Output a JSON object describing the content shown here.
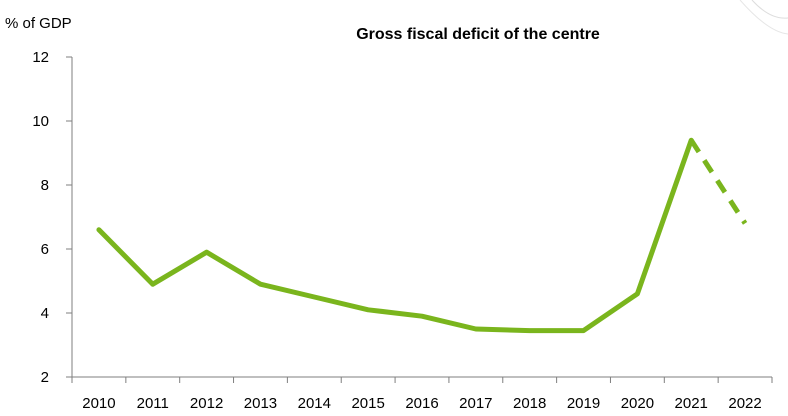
{
  "chart_data": {
    "type": "line",
    "title": "Gross fiscal deficit of the centre",
    "ylabel": "% of GDP",
    "xlabel": "",
    "categories": [
      "2010",
      "2011",
      "2012",
      "2013",
      "2014",
      "2015",
      "2016",
      "2017",
      "2018",
      "2019",
      "2020",
      "2021",
      "2022"
    ],
    "y_ticks": [
      "2",
      "4",
      "6",
      "8",
      "10",
      "12"
    ],
    "ylim": [
      2,
      12
    ],
    "grid": false,
    "legend": "none",
    "series": [
      {
        "values": [
          6.6,
          4.9,
          5.9,
          4.9,
          4.5,
          4.1,
          3.9,
          3.5,
          3.45,
          3.45,
          4.6,
          9.4,
          6.8
        ],
        "line_style": "solid through 2021, dashed 2021-2022",
        "color": "#7ab51d"
      }
    ],
    "axis_color": "#7f7f7f"
  }
}
